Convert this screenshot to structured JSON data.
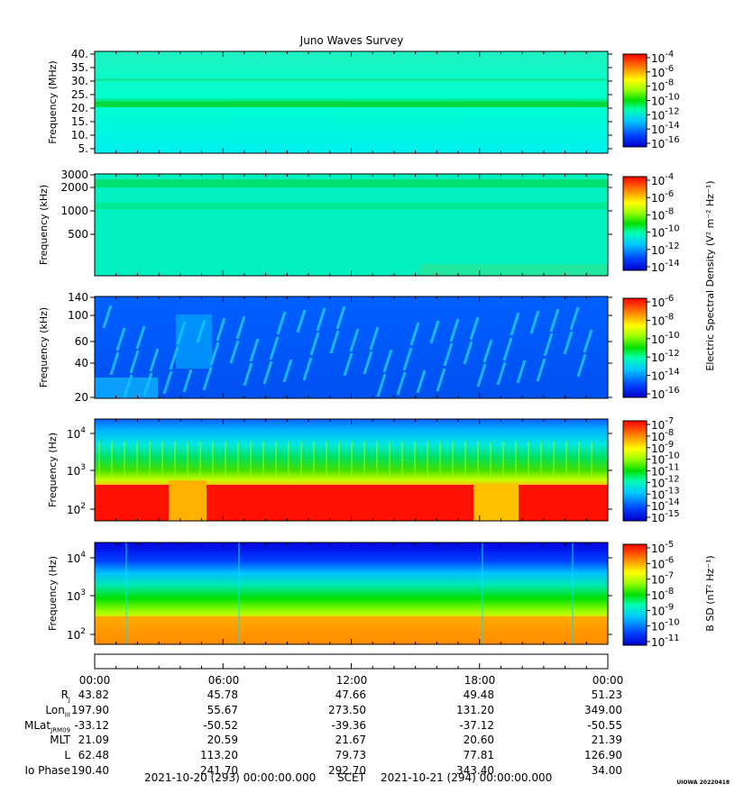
{
  "title": "Juno Waves Survey",
  "credit": "UIOWA 20220418",
  "colors": {
    "cbar": [
      "#ffffff",
      "#0000c8",
      "#0030ff",
      "#0080ff",
      "#00e0ff",
      "#00ff90",
      "#00e000",
      "#a0ff00",
      "#ffff00",
      "#ffb000",
      "#ff6000",
      "#ff1000"
    ]
  },
  "chart_data": [
    {
      "type": "heatmap",
      "ylabel": "Frequency (MHz)",
      "yticks": [
        "40.",
        "35.",
        "30.",
        "25.",
        "20.",
        "15.",
        "10.",
        "5."
      ],
      "cbar_ticks": [
        "-4",
        "-6",
        "-8",
        "-10",
        "-12",
        "-14",
        "-16"
      ],
      "cbar_label": ""
    },
    {
      "type": "heatmap",
      "ylabel": "Frequency (kHz)",
      "yticks": [
        "3000",
        "2000",
        "1000",
        "500"
      ],
      "cbar_ticks": [
        "-4",
        "-6",
        "-8",
        "-10",
        "-12",
        "-14"
      ],
      "cbar_label": "Electric Spectral Density (V² m⁻² Hz⁻¹)"
    },
    {
      "type": "heatmap",
      "ylabel": "Frequency (kHz)",
      "yticks": [
        "140",
        "100",
        "60",
        "40",
        "20"
      ],
      "cbar_ticks": [
        "-6",
        "-8",
        "-10",
        "-12",
        "-14",
        "-16"
      ],
      "cbar_label": ""
    },
    {
      "type": "heatmap",
      "ylabel": "Frequency (Hz)",
      "yticks": [
        "4",
        "3",
        "2"
      ],
      "cbar_ticks": [
        "-7",
        "-8",
        "-9",
        "-10",
        "-11",
        "-12",
        "-13",
        "-14",
        "-15"
      ],
      "cbar_label": ""
    },
    {
      "type": "heatmap",
      "ylabel": "Frequency (Hz)",
      "yticks": [
        "4",
        "3",
        "2"
      ],
      "cbar_ticks": [
        "-5",
        "-6",
        "-7",
        "-8",
        "-9",
        "-10",
        "-11"
      ],
      "cbar_label": "B SD (nT² Hz⁻¹)"
    }
  ],
  "time_axis": {
    "times": [
      "00:00",
      "06:00",
      "12:00",
      "18:00",
      "00:00"
    ],
    "rows": [
      {
        "label": "R",
        "sub": "J",
        "values": [
          "43.82",
          "45.78",
          "47.66",
          "49.48",
          "51.23"
        ]
      },
      {
        "label": "Lon",
        "sub": "III",
        "values": [
          "197.90",
          "55.67",
          "273.50",
          "131.20",
          "349.00"
        ]
      },
      {
        "label": "MLat",
        "sub": "JRM09",
        "values": [
          "-33.12",
          "-50.52",
          "-39.36",
          "-37.12",
          "-50.55"
        ]
      },
      {
        "label": "MLT",
        "sub": "",
        "values": [
          "21.09",
          "20.59",
          "21.67",
          "20.60",
          "21.39"
        ]
      },
      {
        "label": "L",
        "sub": "",
        "values": [
          "62.48",
          "113.20",
          "79.73",
          "77.81",
          "126.90"
        ]
      },
      {
        "label": "Io Phase",
        "sub": "",
        "values": [
          "190.40",
          "241.70",
          "292.70",
          "343.40",
          "34.00"
        ]
      }
    ]
  },
  "footer": {
    "start": "2021-10-20 (293) 00:00:00.000",
    "mid": "SCET",
    "end": "2021-10-21 (294) 00:00:00.000"
  }
}
